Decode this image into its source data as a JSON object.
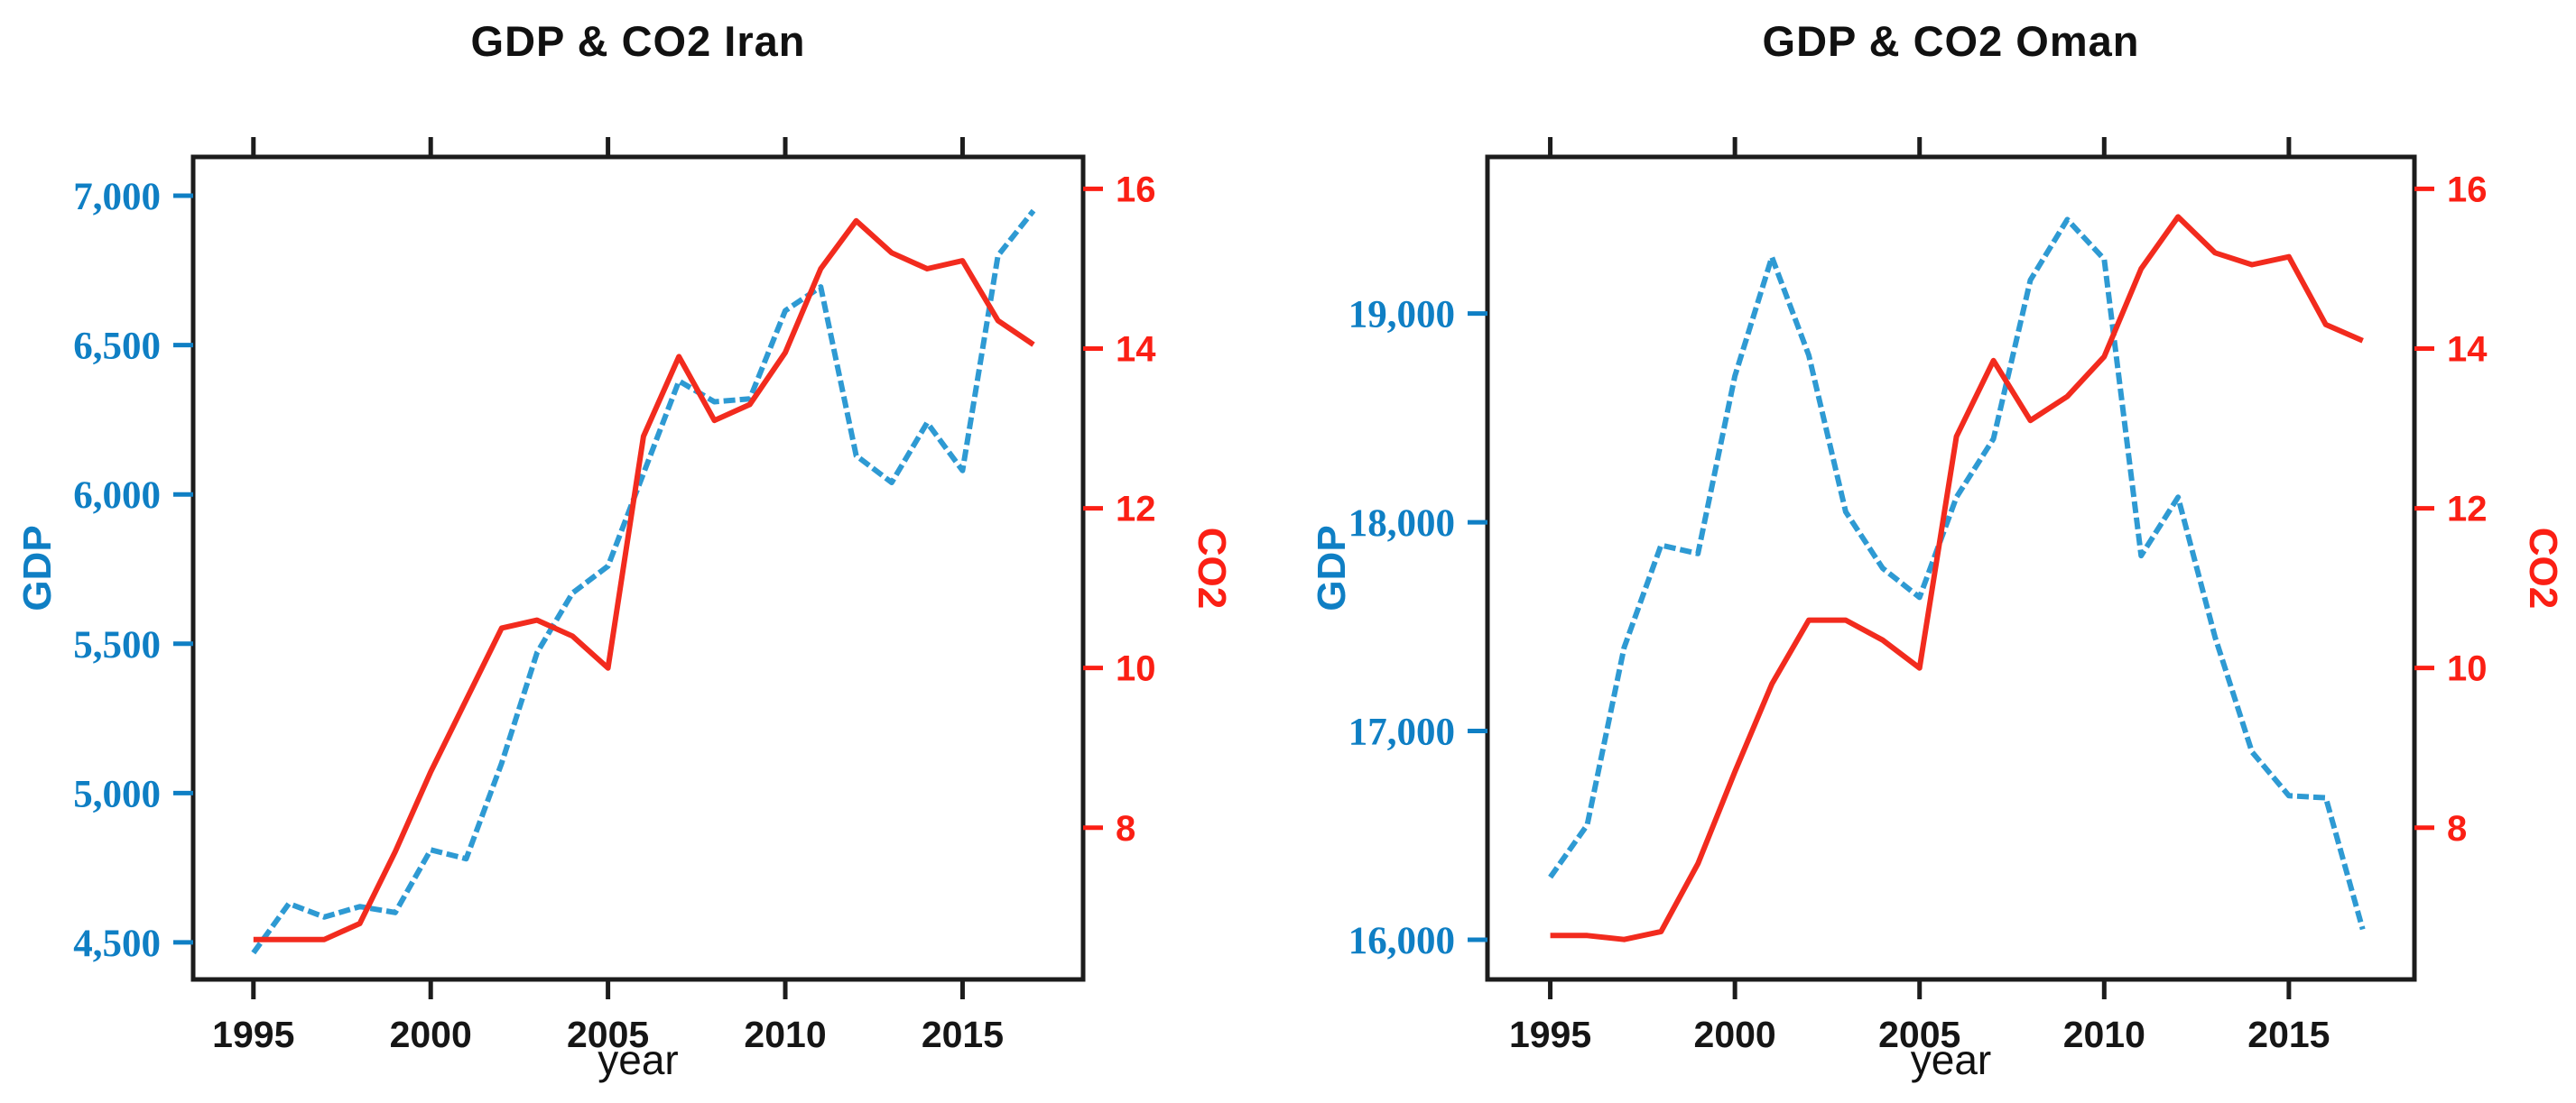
{
  "page": {
    "background": "#ffffff"
  },
  "chart_data": [
    {
      "type": "line",
      "title": "GDP & CO2 Iran",
      "xlabel": "year",
      "grid": false,
      "legend": "none",
      "x": [
        1995,
        1996,
        1997,
        1998,
        1999,
        2000,
        2001,
        2002,
        2003,
        2004,
        2005,
        2006,
        2007,
        2008,
        2009,
        2010,
        2011,
        2012,
        2013,
        2014,
        2015,
        2016,
        2017
      ],
      "x_ticks": [
        1995,
        2000,
        2005,
        2010,
        2015
      ],
      "x_tick_labels": [
        "1995",
        "2000",
        "2005",
        "2010",
        "2015"
      ],
      "x_range": [
        1993.3,
        2018.4
      ],
      "left_axis": {
        "label": "GDP",
        "color": "#0f7fc4",
        "tick_values": [
          7000,
          6500,
          6000,
          5500,
          5000,
          4500
        ],
        "tick_labels": [
          "7,000",
          "6,500",
          "6,000",
          "5,500",
          "5,000",
          "4,500"
        ],
        "range": [
          4376,
          7130
        ]
      },
      "right_axis": {
        "label": "CO2",
        "color": "#fb1f14",
        "tick_values": [
          16,
          14,
          12,
          10,
          8
        ],
        "tick_labels": [
          "16",
          "14",
          "12",
          "10",
          "8"
        ],
        "range": [
          6.1,
          16.4
        ]
      },
      "series": [
        {
          "name": "GDP",
          "axis": "left",
          "color": "#2e9ad3",
          "dashed": true,
          "values": [
            4465,
            4630,
            4585,
            4620,
            4600,
            4810,
            4780,
            5100,
            5470,
            5670,
            5760,
            6070,
            6380,
            6310,
            6320,
            6615,
            6695,
            6130,
            6040,
            6240,
            6080,
            6800,
            6950
          ]
        },
        {
          "name": "CO2",
          "axis": "right",
          "color": "#f22b1e",
          "dashed": false,
          "values": [
            6.6,
            6.6,
            6.6,
            6.8,
            7.7,
            8.7,
            9.6,
            10.5,
            10.6,
            10.4,
            10.0,
            12.9,
            13.9,
            13.1,
            13.3,
            13.95,
            15.0,
            15.6,
            15.2,
            15.0,
            15.1,
            14.35,
            14.05
          ]
        }
      ]
    },
    {
      "type": "line",
      "title": "GDP & CO2 Oman",
      "xlabel": "year",
      "grid": false,
      "legend": "none",
      "x": [
        1995,
        1996,
        1997,
        1998,
        1999,
        2000,
        2001,
        2002,
        2003,
        2004,
        2005,
        2006,
        2007,
        2008,
        2009,
        2010,
        2011,
        2012,
        2013,
        2014,
        2015,
        2016,
        2017
      ],
      "x_ticks": [
        1995,
        2000,
        2005,
        2010,
        2015
      ],
      "x_tick_labels": [
        "1995",
        "2000",
        "2005",
        "2010",
        "2015"
      ],
      "x_range": [
        1993.3,
        2018.4
      ],
      "left_axis": {
        "label": "GDP",
        "color": "#0f7fc4",
        "tick_values": [
          19000,
          18000,
          17000,
          16000
        ],
        "tick_labels": [
          "19,000",
          "18,000",
          "17,000",
          "16,000"
        ],
        "range": [
          15810,
          19750
        ]
      },
      "right_axis": {
        "label": "CO2",
        "color": "#fb1f14",
        "tick_values": [
          16,
          14,
          12,
          10,
          8
        ],
        "tick_labels": [
          "16",
          "14",
          "12",
          "10",
          "8"
        ],
        "range": [
          6.1,
          16.4
        ]
      },
      "series": [
        {
          "name": "GDP",
          "axis": "left",
          "color": "#2e9ad3",
          "dashed": true,
          "values": [
            16300,
            16550,
            17400,
            17890,
            17850,
            18700,
            19270,
            18800,
            18050,
            17780,
            17640,
            18120,
            18400,
            19160,
            19450,
            19260,
            17840,
            18120,
            17450,
            16900,
            16690,
            16680,
            16050
          ]
        },
        {
          "name": "CO2",
          "axis": "right",
          "color": "#f22b1e",
          "dashed": false,
          "values": [
            6.65,
            6.65,
            6.6,
            6.7,
            7.55,
            8.7,
            9.8,
            10.6,
            10.6,
            10.35,
            10.0,
            12.9,
            13.85,
            13.1,
            13.4,
            13.9,
            15.0,
            15.65,
            15.2,
            15.05,
            15.15,
            14.3,
            14.1
          ]
        }
      ]
    }
  ]
}
